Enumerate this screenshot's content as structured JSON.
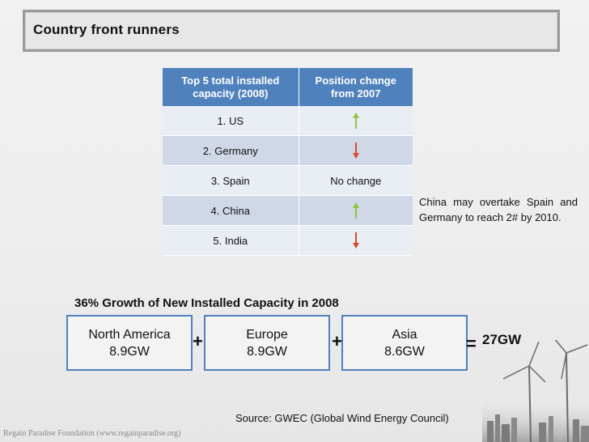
{
  "title": "Country front runners",
  "table": {
    "headers": [
      "Top 5 total installed capacity (2008)",
      "Position change from 2007"
    ],
    "rows": [
      {
        "country": "1. US",
        "change": "up",
        "change_text": ""
      },
      {
        "country": "2. Germany",
        "change": "down",
        "change_text": ""
      },
      {
        "country": "3. Spain",
        "change": "none",
        "change_text": "No change"
      },
      {
        "country": "4. China",
        "change": "up",
        "change_text": ""
      },
      {
        "country": "5. India",
        "change": "down",
        "change_text": ""
      }
    ]
  },
  "note": "China may overtake Spain and Germany to reach 2# by 2010.",
  "growth": {
    "title": "36% Growth of New Installed Capacity in 2008",
    "regions": [
      {
        "name": "North America",
        "value": "8.9GW"
      },
      {
        "name": "Europe",
        "value": "8.9GW"
      },
      {
        "name": "Asia",
        "value": "8.6GW"
      }
    ],
    "plus": "+",
    "equals": "=",
    "total": "27GW"
  },
  "source": "Source:  GWEC (Global Wind Energy Council)",
  "footer": "Regain Paradise Foundation (www.regainparadise.org)",
  "colors": {
    "header_blue": "#4f81bd",
    "arrow_up": "#8cc63f",
    "arrow_down": "#d9482b"
  }
}
